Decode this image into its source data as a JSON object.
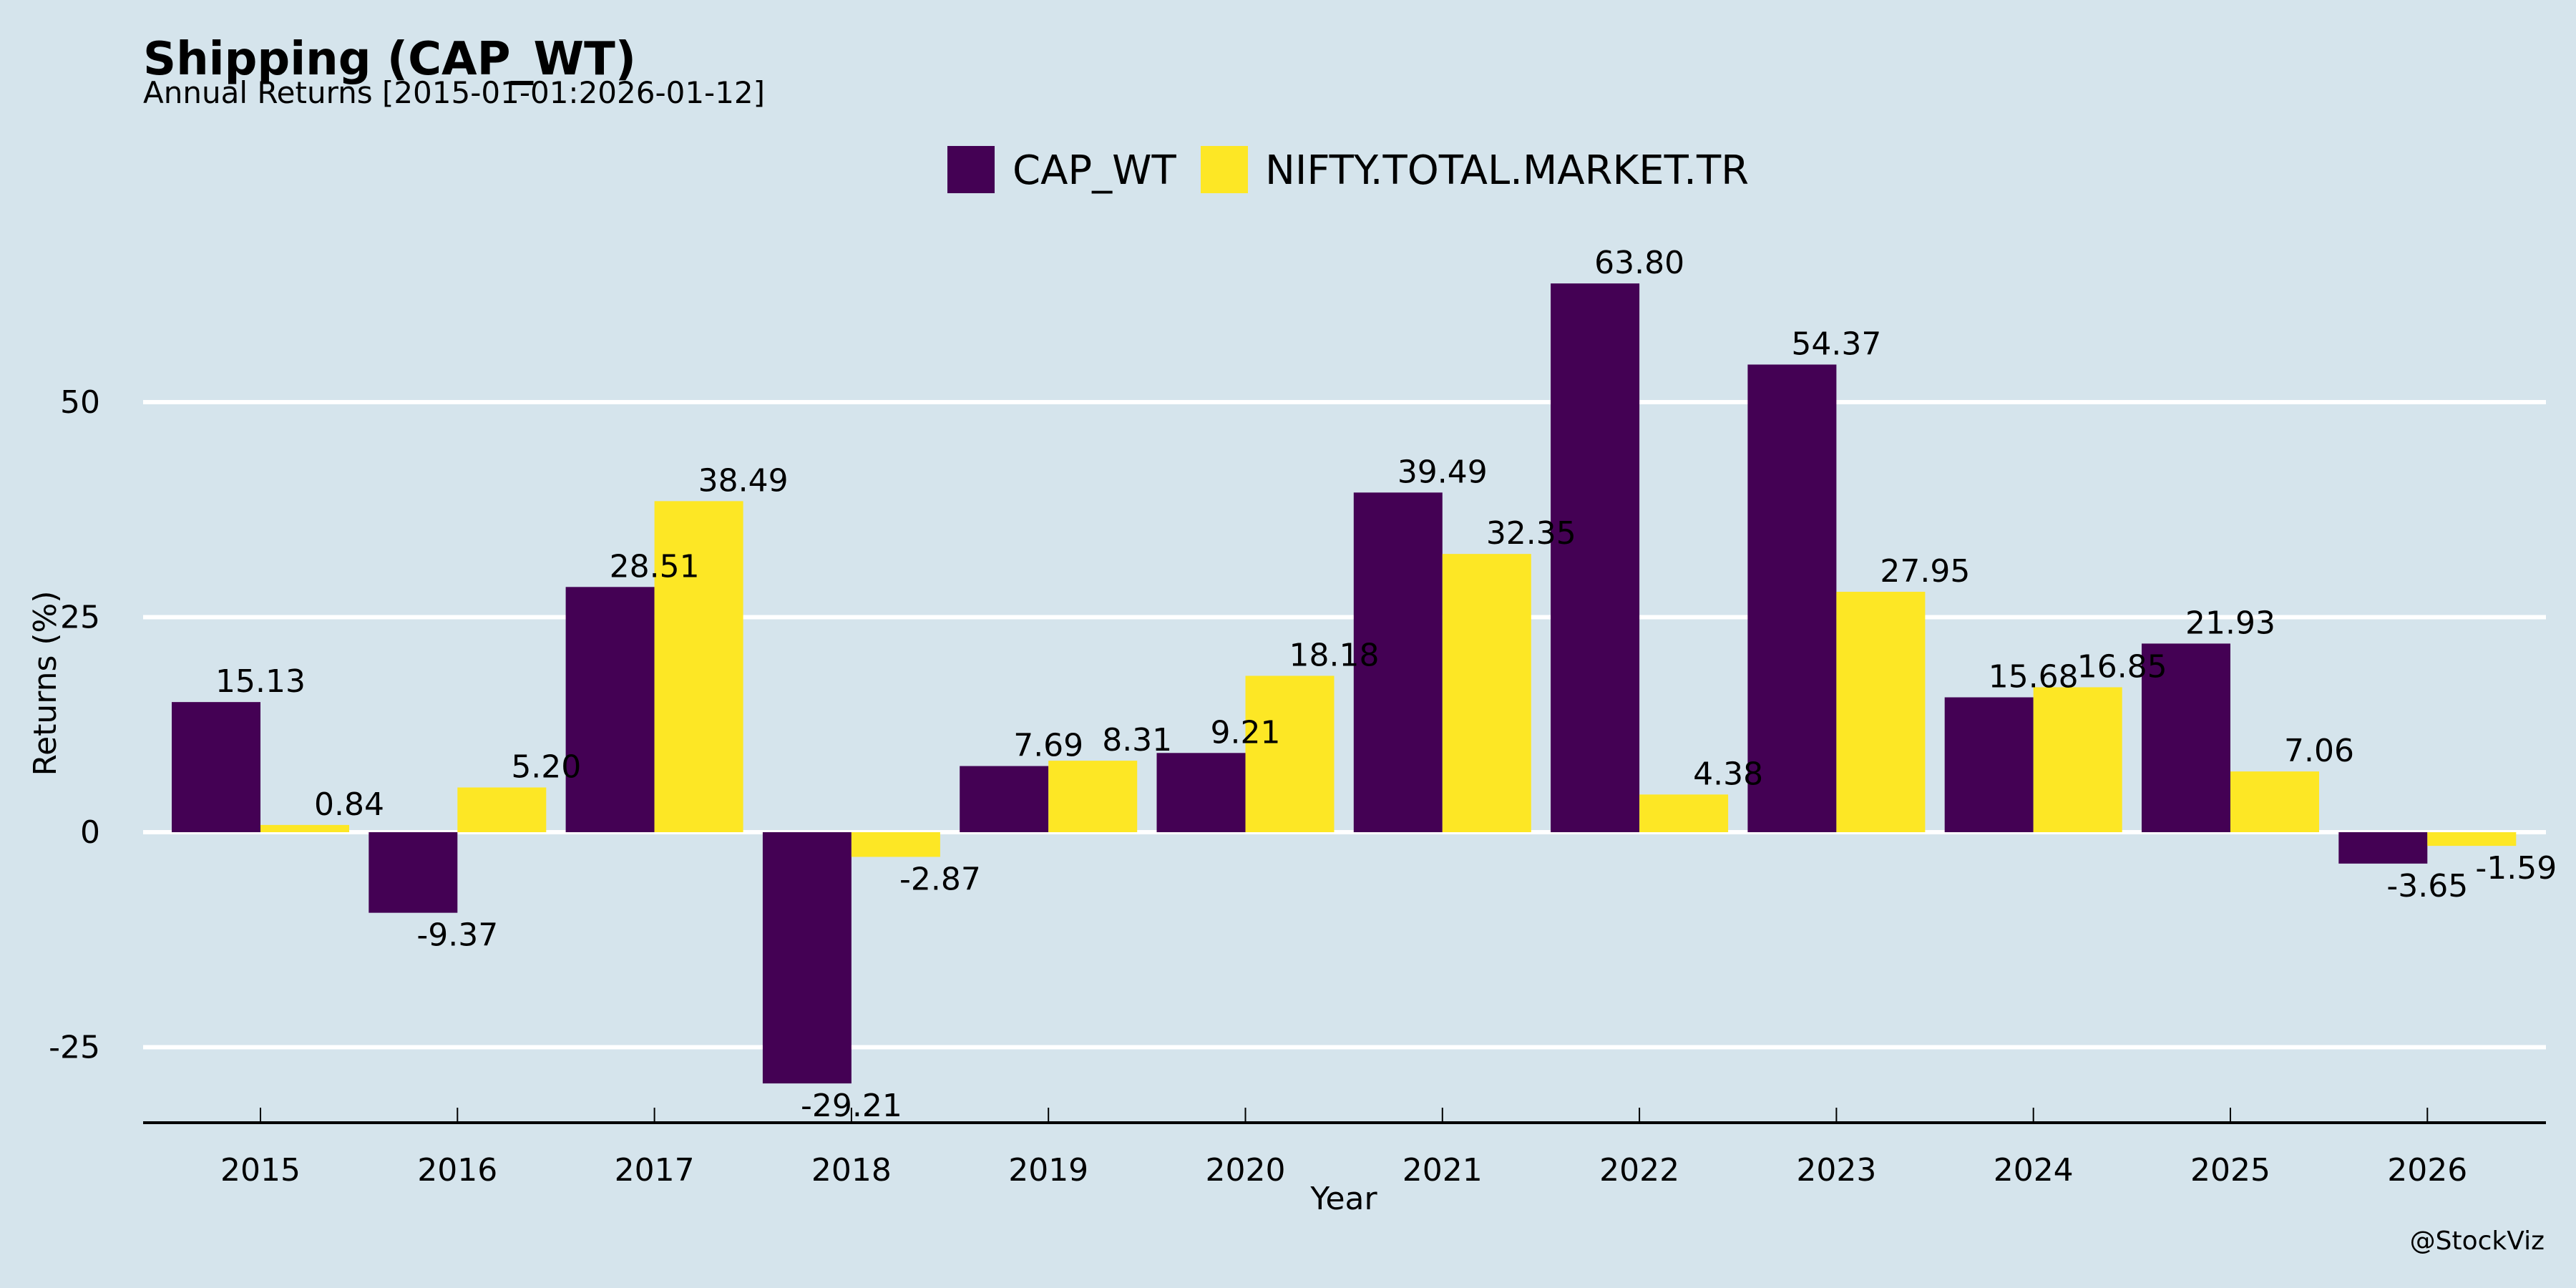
{
  "chart_data": {
    "type": "bar",
    "title": "Shipping (CAP_WT)",
    "subtitle": "Annual Returns [2015-01-01:2026-01-12]",
    "xlabel": "Year",
    "ylabel": "Returns (%)",
    "categories": [
      "2015",
      "2016",
      "2017",
      "2018",
      "2019",
      "2020",
      "2021",
      "2022",
      "2023",
      "2024",
      "2025",
      "2026"
    ],
    "series": [
      {
        "name": "CAP_WT",
        "color": "#440154",
        "values": [
          15.13,
          -9.37,
          28.51,
          -29.21,
          7.69,
          9.21,
          39.49,
          63.8,
          54.37,
          15.68,
          21.93,
          -3.65
        ]
      },
      {
        "name": "NIFTY.TOTAL.MARKET.TR",
        "color": "#fde725",
        "values": [
          0.84,
          5.2,
          38.49,
          -2.87,
          8.31,
          18.18,
          32.35,
          4.38,
          27.95,
          16.85,
          7.06,
          -1.59
        ]
      }
    ],
    "yticks": [
      -25,
      0,
      25,
      50
    ],
    "ylim": [
      -34,
      74
    ],
    "grid": true,
    "grid_axis": "y",
    "legend_position": "top-center",
    "watermark": "@StockViz",
    "background_color": "#d5e4ec",
    "grid_color": "#ffffff"
  }
}
